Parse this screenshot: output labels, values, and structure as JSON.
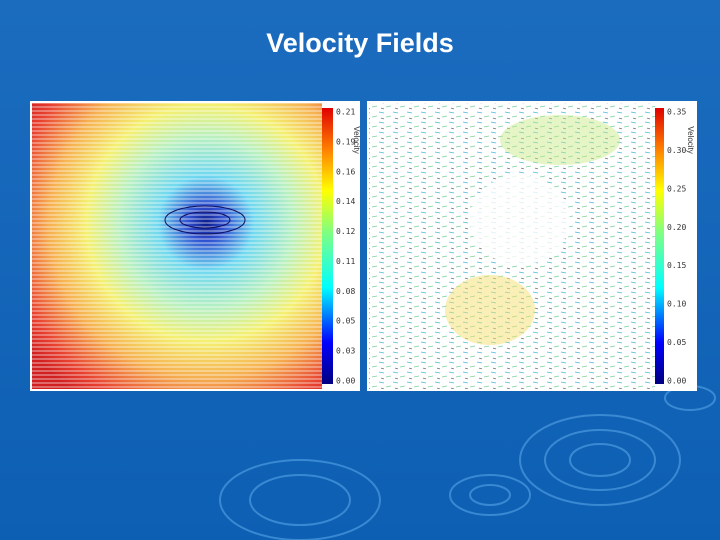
{
  "title": "Velocity Fields",
  "panels": [
    {
      "colorbar": {
        "label": "Velocity",
        "ticks": [
          "0.21",
          "0.19",
          "0.16",
          "0.14",
          "0.12",
          "0.11",
          "0.08",
          "0.05",
          "0.03",
          "0.00"
        ]
      }
    },
    {
      "colorbar": {
        "label": "Velocity",
        "ticks": [
          "0.35",
          "0.30",
          "0.25",
          "0.20",
          "0.15",
          "0.10",
          "0.05",
          "0.00"
        ]
      }
    }
  ]
}
